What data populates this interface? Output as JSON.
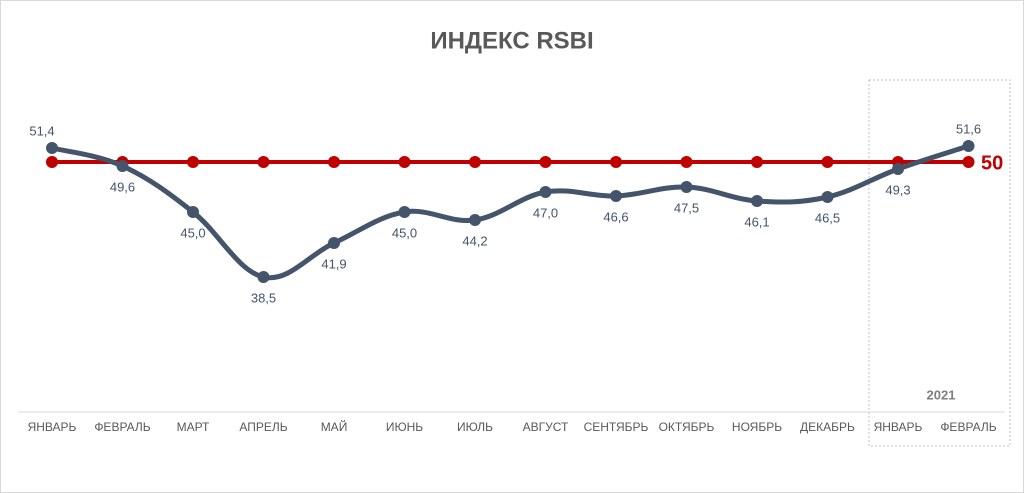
{
  "chart_data": {
    "type": "line",
    "title": "ИНДЕКС RSBI",
    "categories": [
      "ЯНВАРЬ",
      "ФЕВРАЛЬ",
      "МАРТ",
      "АПРЕЛЬ",
      "МАЙ",
      "ИЮНЬ",
      "ИЮЛЬ",
      "АВГУСТ",
      "СЕНТЯБРЬ",
      "ОКТЯБРЬ",
      "НОЯБРЬ",
      "ДЕКАБРЬ",
      "ЯНВАРЬ",
      "ФЕВРАЛЬ"
    ],
    "series": [
      {
        "color": "#44546a",
        "values": [
          51.4,
          49.6,
          45.0,
          38.5,
          41.9,
          45.0,
          44.2,
          47.0,
          46.6,
          47.5,
          46.1,
          46.5,
          49.3,
          51.6
        ],
        "value_labels": [
          "51,4",
          "49,6",
          "45,0",
          "38,5",
          "41,9",
          "45,0",
          "44,2",
          "47,0",
          "46,6",
          "47,5",
          "46,1",
          "46,5",
          "49,3",
          "51,6"
        ]
      },
      {
        "color": "#c00000",
        "values": [
          50,
          50,
          50,
          50,
          50,
          50,
          50,
          50,
          50,
          50,
          50,
          50,
          50,
          50
        ],
        "end_label": "50"
      }
    ],
    "annotation": "2021",
    "ylim": [
      25,
      60
    ],
    "grid": false
  }
}
